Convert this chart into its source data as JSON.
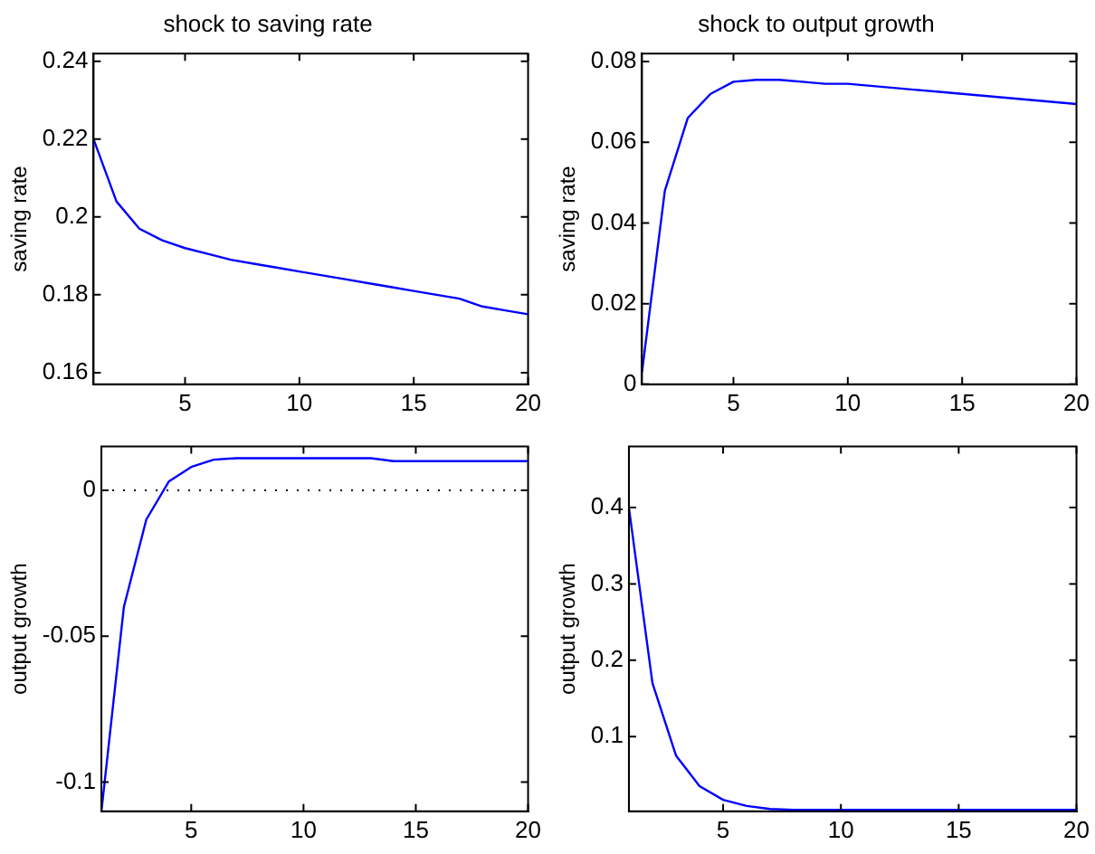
{
  "chart_data": [
    {
      "type": "line",
      "title": "shock to saving rate",
      "ylabel": "saving rate",
      "x": [
        1,
        2,
        3,
        4,
        5,
        6,
        7,
        8,
        9,
        10,
        11,
        12,
        13,
        14,
        15,
        16,
        17,
        18,
        19,
        20
      ],
      "series": [
        {
          "color": "#0000ff",
          "values": [
            0.22,
            0.204,
            0.197,
            0.194,
            0.192,
            0.1905,
            0.189,
            0.188,
            0.187,
            0.186,
            0.185,
            0.184,
            0.183,
            0.182,
            0.181,
            0.18,
            0.179,
            0.177,
            0.176,
            0.175
          ]
        }
      ],
      "xlim": [
        1,
        20
      ],
      "xticks": [
        5,
        10,
        15,
        20
      ],
      "ylim": [
        0.157,
        0.242
      ],
      "yticks": [
        0.16,
        0.18,
        0.2,
        0.22,
        0.24
      ],
      "grid": false,
      "legend": false
    },
    {
      "type": "line",
      "title": "shock to output growth",
      "ylabel": "saving rate",
      "x": [
        1,
        2,
        3,
        4,
        5,
        6,
        7,
        8,
        9,
        10,
        11,
        12,
        13,
        14,
        15,
        16,
        17,
        18,
        19,
        20
      ],
      "series": [
        {
          "color": "#0000ff",
          "values": [
            0.003,
            0.048,
            0.066,
            0.072,
            0.075,
            0.0755,
            0.0755,
            0.075,
            0.0745,
            0.0745,
            0.074,
            0.0735,
            0.073,
            0.0725,
            0.072,
            0.0715,
            0.071,
            0.0705,
            0.07,
            0.0695
          ]
        }
      ],
      "xlim": [
        1,
        20
      ],
      "xticks": [
        5,
        10,
        15,
        20
      ],
      "ylim": [
        0,
        0.082
      ],
      "yticks": [
        0,
        0.02,
        0.04,
        0.06,
        0.08
      ],
      "grid": false,
      "legend": false
    },
    {
      "type": "line",
      "ylabel": "output growth",
      "x": [
        1,
        2,
        3,
        4,
        5,
        6,
        7,
        8,
        9,
        10,
        11,
        12,
        13,
        14,
        15,
        16,
        17,
        18,
        19,
        20
      ],
      "series": [
        {
          "color": "#0000ff",
          "values": [
            -0.11,
            -0.04,
            -0.01,
            0.003,
            0.008,
            0.0105,
            0.011,
            0.011,
            0.011,
            0.011,
            0.011,
            0.011,
            0.011,
            0.01,
            0.01,
            0.01,
            0.01,
            0.01,
            0.01,
            0.01
          ]
        }
      ],
      "xlim": [
        1,
        20
      ],
      "xticks": [
        5,
        10,
        15,
        20
      ],
      "ylim": [
        -0.11,
        0.015
      ],
      "yticks": [
        {
          "value": -0.1,
          "label": "-0.1"
        },
        -0.05,
        0
      ],
      "grid": false,
      "legend": false,
      "ref_lines": [
        {
          "axis": "y",
          "value": 0,
          "color": "#000000",
          "line_style": "dotted"
        }
      ]
    },
    {
      "type": "line",
      "ylabel": "output growth",
      "x": [
        1,
        2,
        3,
        4,
        5,
        6,
        7,
        8,
        9,
        10,
        11,
        12,
        13,
        14,
        15,
        16,
        17,
        18,
        19,
        20
      ],
      "series": [
        {
          "color": "#0000ff",
          "values": [
            0.4,
            0.17,
            0.075,
            0.035,
            0.017,
            0.009,
            0.005,
            0.004,
            0.004,
            0.004,
            0.004,
            0.004,
            0.004,
            0.004,
            0.004,
            0.004,
            0.004,
            0.004,
            0.004,
            0.004
          ]
        }
      ],
      "xlim": [
        1,
        20
      ],
      "xticks": [
        5,
        10,
        15,
        20
      ],
      "ylim": [
        0.002,
        0.48
      ],
      "yticks": [
        0.1,
        0.2,
        0.3,
        0.4
      ],
      "grid": false,
      "legend": false
    }
  ]
}
